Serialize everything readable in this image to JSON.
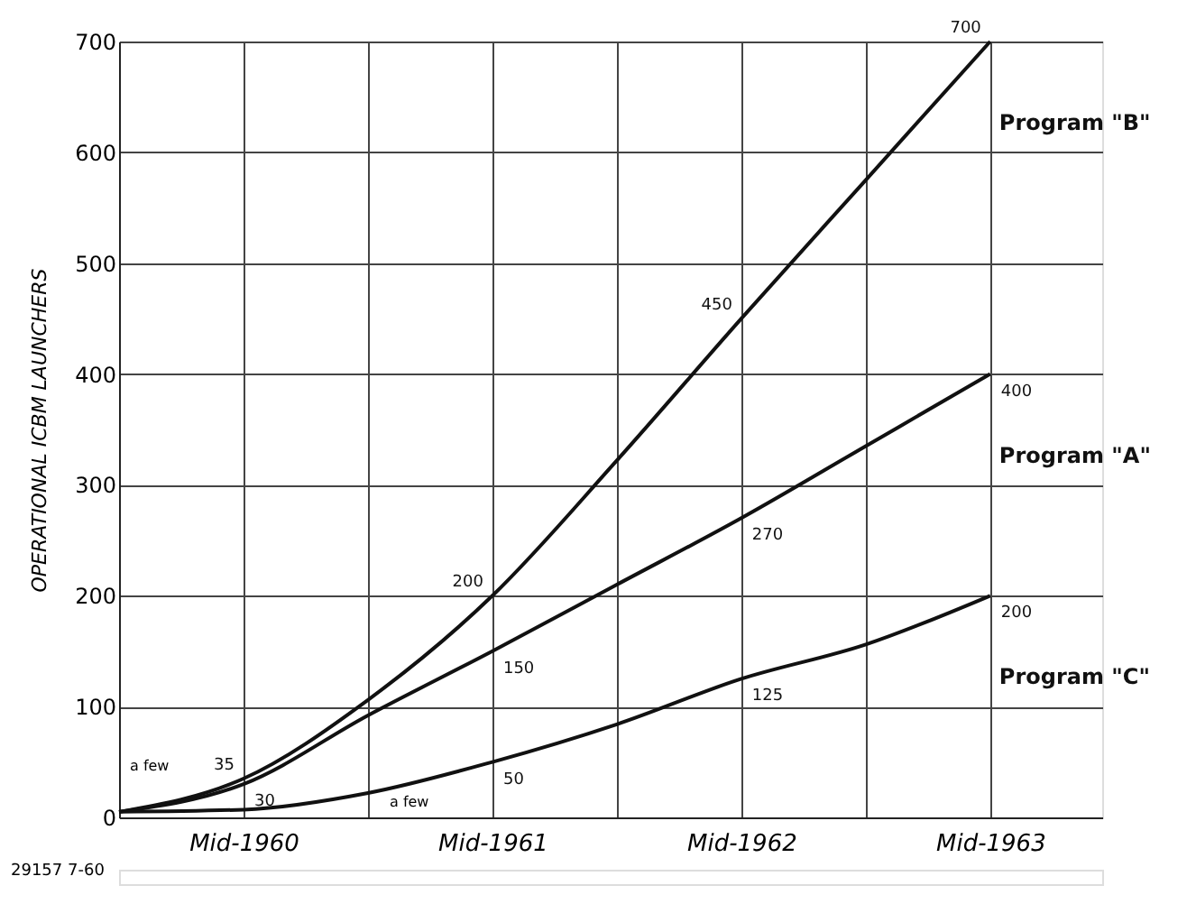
{
  "chart_data": {
    "type": "line",
    "ylabel": "OPERATIONAL ICBM LAUNCHERS",
    "categories": [
      null,
      "Mid-1960",
      null,
      "Mid-1961",
      null,
      "Mid-1962",
      null,
      "Mid-1963"
    ],
    "series": [
      {
        "name": "Program \"B\"",
        "color": "#111111",
        "values": [
          5,
          35,
          106,
          200,
          322,
          450,
          575,
          700
        ],
        "value_labels": [
          null,
          "35",
          null,
          "200",
          null,
          "450",
          null,
          "700"
        ]
      },
      {
        "name": "Program \"A\"",
        "color": "#111111",
        "values": [
          5,
          30,
          92,
          150,
          210,
          270,
          335,
          400
        ],
        "value_labels": [
          null,
          "30",
          null,
          "150",
          null,
          "270",
          null,
          "400"
        ]
      },
      {
        "name": "Program \"C\"",
        "color": "#111111",
        "values": [
          5,
          7,
          22,
          50,
          84,
          125,
          156,
          200
        ],
        "value_labels": [
          null,
          null,
          null,
          "50",
          null,
          "125",
          null,
          "200"
        ]
      }
    ],
    "ylim": [
      0,
      700
    ],
    "yticks": [
      0,
      100,
      200,
      300,
      400,
      500,
      600,
      700
    ],
    "grid": true,
    "marker": "none",
    "line_style": "solid",
    "annotations": [
      "a few",
      "a few",
      "29157 7-60"
    ]
  }
}
